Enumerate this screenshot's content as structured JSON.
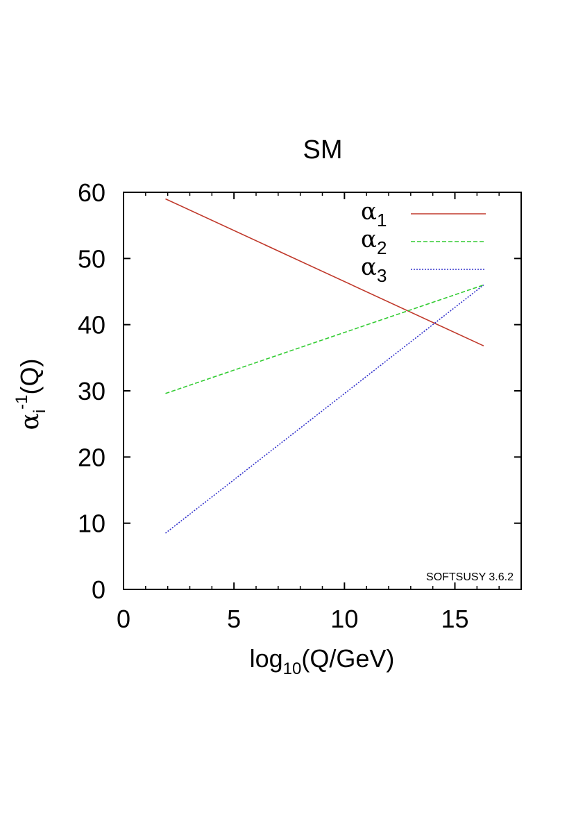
{
  "chart_data": {
    "type": "line",
    "title": "SM",
    "xlabel": {
      "main": "log",
      "sub": "10",
      "rest": "(Q/GeV)"
    },
    "ylabel": {
      "alpha": "α",
      "sub": "i",
      "sup": "-1",
      "rest": "(Q)"
    },
    "xlim": [
      0,
      18
    ],
    "ylim": [
      0,
      60
    ],
    "xticks": [
      0,
      5,
      10,
      15
    ],
    "xtick_labels": [
      "0",
      "5",
      "10",
      "15"
    ],
    "yticks": [
      0,
      10,
      20,
      30,
      40,
      50,
      60
    ],
    "ytick_labels": [
      "0",
      "10",
      "20",
      "30",
      "40",
      "50",
      "60"
    ],
    "minor_xticks": [
      1,
      2,
      3,
      4,
      6,
      7,
      8,
      9,
      11,
      12,
      13,
      14,
      16,
      17
    ],
    "grid": false,
    "legend_position": "top-right",
    "annotation": "SOFTSUSY 3.6.2",
    "series": [
      {
        "name": "α1",
        "label_symbol": "α",
        "label_sub": "1",
        "color": "#c0392b",
        "dash": "solid",
        "x": [
          1.9,
          16.3
        ],
        "y": [
          59.0,
          36.8
        ]
      },
      {
        "name": "α2",
        "label_symbol": "α",
        "label_sub": "2",
        "color": "#33cc33",
        "dash": "dashed",
        "x": [
          1.9,
          16.3
        ],
        "y": [
          29.6,
          46.0
        ]
      },
      {
        "name": "α3",
        "label_symbol": "α",
        "label_sub": "3",
        "color": "#3333cc",
        "dash": "dotted",
        "x": [
          1.9,
          16.3
        ],
        "y": [
          8.5,
          46.0
        ]
      }
    ]
  }
}
